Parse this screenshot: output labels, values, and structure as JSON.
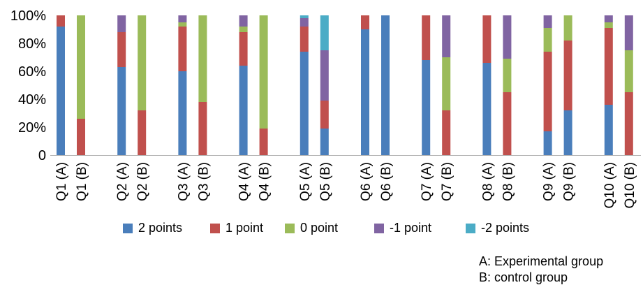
{
  "chart_data": {
    "type": "bar",
    "stacked": true,
    "categories": [
      "Q1 (A)",
      "Q1 (B)",
      "Q2 (A)",
      "Q2 (B)",
      "Q3 (A)",
      "Q3 (B)",
      "Q4 (A)",
      "Q4 (B)",
      "Q5 (A)",
      "Q5 (B)",
      "Q6 (A)",
      "Q6 (B)",
      "Q7 (A)",
      "Q7 (B)",
      "Q8 (A)",
      "Q8 (B)",
      "Q9 (A)",
      "Q9 (B)",
      "Q10 (A)",
      "Q10 (B)"
    ],
    "series": [
      {
        "name": "2 points",
        "color": "#4a7ebb",
        "values": [
          92,
          0,
          63,
          0,
          60,
          0,
          64,
          0,
          74,
          19,
          90,
          100,
          68,
          0,
          66,
          0,
          17,
          32,
          36,
          0
        ]
      },
      {
        "name": "1 point",
        "color": "#c0504d",
        "values": [
          8,
          26,
          25,
          32,
          32,
          38,
          24,
          19,
          18,
          20,
          10,
          0,
          32,
          32,
          34,
          45,
          57,
          50,
          55,
          45
        ]
      },
      {
        "name": "0 point",
        "color": "#9bbb59",
        "values": [
          0,
          74,
          0,
          68,
          3,
          62,
          4,
          81,
          0,
          0,
          0,
          0,
          0,
          38,
          0,
          24,
          17,
          18,
          4,
          30
        ]
      },
      {
        "name": "-1 point",
        "color": "#8064a2",
        "values": [
          0,
          0,
          12,
          0,
          5,
          0,
          8,
          0,
          6,
          36,
          0,
          0,
          0,
          30,
          0,
          31,
          9,
          0,
          5,
          25
        ]
      },
      {
        "name": "-2 points",
        "color": "#4bacc6",
        "values": [
          0,
          0,
          0,
          0,
          0,
          0,
          0,
          0,
          2,
          25,
          0,
          0,
          0,
          0,
          0,
          0,
          0,
          0,
          0,
          0
        ]
      }
    ],
    "ylim": [
      0,
      100
    ],
    "yticks": [
      "0",
      "20%",
      "40%",
      "60%",
      "80%",
      "100%"
    ],
    "legend_position": "bottom",
    "grid": false
  },
  "notes": {
    "a": "A: Experimental group",
    "b": "B: control group"
  }
}
